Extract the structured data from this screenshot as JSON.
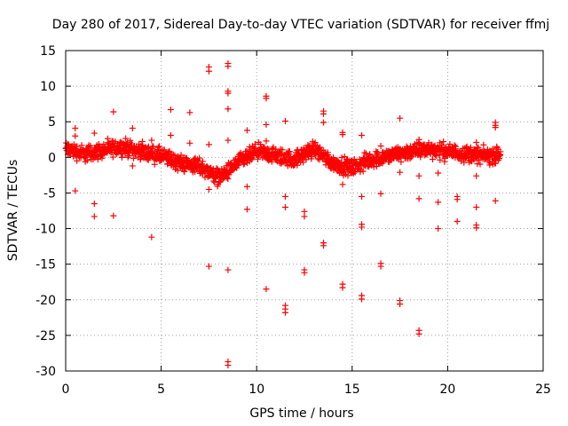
{
  "chart_data": {
    "type": "scatter",
    "title": "Day 280 of 2017, Sidereal Day-to-day VTEC variation (SDTVAR) for receiver ffmj",
    "xlabel": "GPS time / hours",
    "ylabel": "SDTVAR / TECUs",
    "xlim": [
      0,
      25
    ],
    "ylim": [
      -30,
      15
    ],
    "xticks": [
      0,
      5,
      10,
      15,
      20,
      25
    ],
    "yticks": [
      15,
      10,
      5,
      0,
      -5,
      -10,
      -15,
      -20,
      -25,
      -30
    ],
    "grid": true,
    "marker": "+",
    "color": "#ff0000",
    "band_trend": {
      "x": [
        0,
        1,
        2,
        3,
        4,
        5,
        6,
        7,
        7.5,
        8,
        8.5,
        9,
        10,
        11,
        12,
        13,
        14,
        15,
        16,
        17,
        18,
        19,
        20,
        21,
        22,
        22.8
      ],
      "y": [
        1.2,
        0.5,
        1.0,
        1.5,
        0.8,
        0.2,
        -0.8,
        -1.2,
        -2.0,
        -2.8,
        -2.0,
        -0.8,
        0.8,
        0.2,
        -0.3,
        1.2,
        -0.8,
        -1.5,
        -0.3,
        0.2,
        0.8,
        1.2,
        0.8,
        0.5,
        0.2,
        0.3
      ]
    },
    "outliers": [
      {
        "x": 0.5,
        "y": 4.1
      },
      {
        "x": 0.5,
        "y": 3.0
      },
      {
        "x": 0.5,
        "y": -4.7
      },
      {
        "x": 1.5,
        "y": 3.4
      },
      {
        "x": 1.5,
        "y": -6.5
      },
      {
        "x": 1.5,
        "y": -8.3
      },
      {
        "x": 2.5,
        "y": 6.4
      },
      {
        "x": 2.5,
        "y": -8.2
      },
      {
        "x": 3.5,
        "y": 4.1
      },
      {
        "x": 3.5,
        "y": -1.2
      },
      {
        "x": 4.5,
        "y": 2.4
      },
      {
        "x": 4.5,
        "y": -11.2
      },
      {
        "x": 5.5,
        "y": 6.7
      },
      {
        "x": 5.5,
        "y": 3.1
      },
      {
        "x": 6.5,
        "y": 6.3
      },
      {
        "x": 6.5,
        "y": 2.0
      },
      {
        "x": 7.5,
        "y": 12.7
      },
      {
        "x": 7.5,
        "y": 12.1
      },
      {
        "x": 7.5,
        "y": 1.8
      },
      {
        "x": 7.5,
        "y": -4.5
      },
      {
        "x": 7.5,
        "y": -15.3
      },
      {
        "x": 8.5,
        "y": 13.2
      },
      {
        "x": 8.5,
        "y": 12.8
      },
      {
        "x": 8.5,
        "y": 9.3
      },
      {
        "x": 8.5,
        "y": 9.0
      },
      {
        "x": 8.5,
        "y": 6.8
      },
      {
        "x": 8.5,
        "y": 2.4
      },
      {
        "x": 8.5,
        "y": -15.8
      },
      {
        "x": 8.5,
        "y": -28.7
      },
      {
        "x": 8.5,
        "y": -29.2
      },
      {
        "x": 9.5,
        "y": 3.8
      },
      {
        "x": 9.5,
        "y": -4.1
      },
      {
        "x": 9.5,
        "y": -7.3
      },
      {
        "x": 10.5,
        "y": 8.6
      },
      {
        "x": 10.5,
        "y": 8.3
      },
      {
        "x": 10.5,
        "y": 4.6
      },
      {
        "x": 10.5,
        "y": 2.3
      },
      {
        "x": 10.5,
        "y": -18.5
      },
      {
        "x": 11.5,
        "y": 5.1
      },
      {
        "x": 11.5,
        "y": -5.5
      },
      {
        "x": 11.5,
        "y": -7.0
      },
      {
        "x": 11.5,
        "y": -20.8
      },
      {
        "x": 11.5,
        "y": -21.3
      },
      {
        "x": 11.5,
        "y": -21.8
      },
      {
        "x": 12.5,
        "y": -7.6
      },
      {
        "x": 12.5,
        "y": -8.3
      },
      {
        "x": 12.5,
        "y": -15.8
      },
      {
        "x": 12.5,
        "y": -16.2
      },
      {
        "x": 13.5,
        "y": 6.5
      },
      {
        "x": 13.5,
        "y": 6.1
      },
      {
        "x": 13.5,
        "y": 4.9
      },
      {
        "x": 13.5,
        "y": -12.0
      },
      {
        "x": 13.5,
        "y": -12.4
      },
      {
        "x": 14.5,
        "y": 3.5
      },
      {
        "x": 14.5,
        "y": 3.2
      },
      {
        "x": 14.5,
        "y": -3.8
      },
      {
        "x": 14.5,
        "y": -17.8
      },
      {
        "x": 14.5,
        "y": -18.3
      },
      {
        "x": 15.5,
        "y": 3.1
      },
      {
        "x": 15.5,
        "y": -5.5
      },
      {
        "x": 15.5,
        "y": -9.4
      },
      {
        "x": 15.5,
        "y": -9.8
      },
      {
        "x": 15.5,
        "y": -19.4
      },
      {
        "x": 15.5,
        "y": -19.9
      },
      {
        "x": 16.5,
        "y": 1.6
      },
      {
        "x": 16.5,
        "y": -5.1
      },
      {
        "x": 16.5,
        "y": -14.9
      },
      {
        "x": 16.5,
        "y": -15.3
      },
      {
        "x": 17.5,
        "y": 5.5
      },
      {
        "x": 17.5,
        "y": 1.2
      },
      {
        "x": 17.5,
        "y": -2.1
      },
      {
        "x": 17.5,
        "y": -20.1
      },
      {
        "x": 17.5,
        "y": -20.6
      },
      {
        "x": 18.5,
        "y": 2.5
      },
      {
        "x": 18.5,
        "y": -2.6
      },
      {
        "x": 18.5,
        "y": -5.8
      },
      {
        "x": 18.5,
        "y": -24.3
      },
      {
        "x": 18.5,
        "y": -24.8
      },
      {
        "x": 19.5,
        "y": -2.2
      },
      {
        "x": 19.5,
        "y": -6.3
      },
      {
        "x": 19.5,
        "y": -10.0
      },
      {
        "x": 20.5,
        "y": -5.5
      },
      {
        "x": 20.5,
        "y": -5.9
      },
      {
        "x": 20.5,
        "y": -9.0
      },
      {
        "x": 21.5,
        "y": 2.1
      },
      {
        "x": 21.5,
        "y": -2.6
      },
      {
        "x": 21.5,
        "y": -7.0
      },
      {
        "x": 21.5,
        "y": -9.5
      },
      {
        "x": 21.5,
        "y": -9.9
      },
      {
        "x": 22.5,
        "y": 4.9
      },
      {
        "x": 22.5,
        "y": 4.5
      },
      {
        "x": 22.5,
        "y": 4.2
      },
      {
        "x": 22.5,
        "y": -6.1
      }
    ]
  }
}
